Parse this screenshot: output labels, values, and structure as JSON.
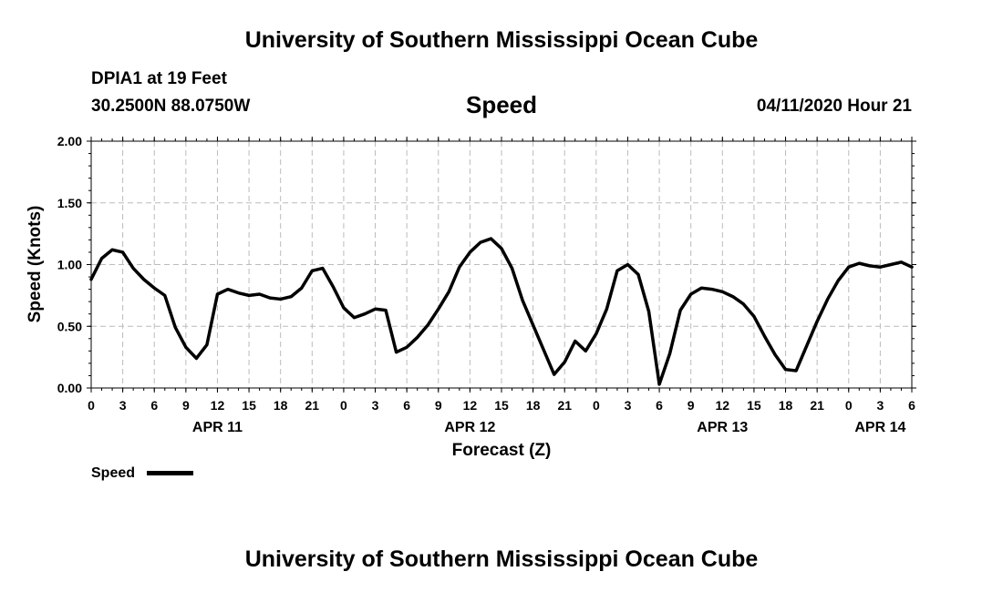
{
  "header": {
    "title": "University of Southern Mississippi Ocean Cube",
    "station": "DPIA1 at 19 Feet",
    "coords": "30.2500N 88.0750W",
    "variable": "Speed",
    "datetime": "04/11/2020 Hour 21"
  },
  "footer": {
    "title": "University of Southern Mississippi Ocean Cube"
  },
  "colors": {
    "line": "#000000",
    "grid": "#bbbbbb"
  },
  "chart_data": {
    "type": "line",
    "title": "Speed",
    "xlabel": "Forecast (Z)",
    "ylabel": "Speed (Knots)",
    "ylim": [
      0,
      2
    ],
    "xlim": [
      0,
      78
    ],
    "grid": true,
    "yticks": [
      "0.00",
      "0.50",
      "1.00",
      "1.50",
      "2.00"
    ],
    "xtick_labels": [
      "0",
      "3",
      "6",
      "9",
      "12",
      "15",
      "18",
      "21",
      "0",
      "3",
      "6",
      "9",
      "12",
      "15",
      "18",
      "21",
      "0",
      "3",
      "6",
      "9",
      "12",
      "15",
      "18",
      "21",
      "0",
      "3",
      "6"
    ],
    "day_labels": [
      {
        "label": "APR 11",
        "hour": 12
      },
      {
        "label": "APR 12",
        "hour": 36
      },
      {
        "label": "APR 13",
        "hour": 60
      },
      {
        "label": "APR 14",
        "hour": 75
      }
    ],
    "legend": {
      "label": "Speed",
      "position": "bottom-left"
    },
    "series": [
      {
        "name": "Speed",
        "x": [
          0,
          1,
          2,
          3,
          4,
          5,
          6,
          7,
          8,
          9,
          10,
          11,
          12,
          13,
          14,
          15,
          16,
          17,
          18,
          19,
          20,
          21,
          22,
          23,
          24,
          25,
          26,
          27,
          28,
          29,
          30,
          31,
          32,
          33,
          34,
          35,
          36,
          37,
          38,
          39,
          40,
          41,
          42,
          43,
          44,
          45,
          46,
          47,
          48,
          49,
          50,
          51,
          52,
          53,
          54,
          55,
          56,
          57,
          58,
          59,
          60,
          61,
          62,
          63,
          64,
          65,
          66,
          67,
          68,
          69,
          70,
          71,
          72,
          73,
          74,
          75,
          76,
          77,
          78
        ],
        "values": [
          0.88,
          1.05,
          1.12,
          1.1,
          0.97,
          0.88,
          0.81,
          0.75,
          0.49,
          0.33,
          0.24,
          0.35,
          0.76,
          0.8,
          0.77,
          0.75,
          0.76,
          0.73,
          0.72,
          0.74,
          0.81,
          0.95,
          0.97,
          0.82,
          0.65,
          0.57,
          0.6,
          0.64,
          0.63,
          0.29,
          0.33,
          0.41,
          0.51,
          0.64,
          0.78,
          0.98,
          1.1,
          1.18,
          1.21,
          1.13,
          0.97,
          0.71,
          0.51,
          0.31,
          0.11,
          0.21,
          0.38,
          0.3,
          0.44,
          0.64,
          0.95,
          1.0,
          0.92,
          0.62,
          0.03,
          0.28,
          0.63,
          0.76,
          0.81,
          0.8,
          0.78,
          0.74,
          0.68,
          0.58,
          0.42,
          0.27,
          0.15,
          0.14,
          0.34,
          0.54,
          0.72,
          0.87,
          0.98,
          1.01,
          0.99,
          0.98,
          1.0,
          1.02,
          0.98
        ]
      }
    ]
  }
}
